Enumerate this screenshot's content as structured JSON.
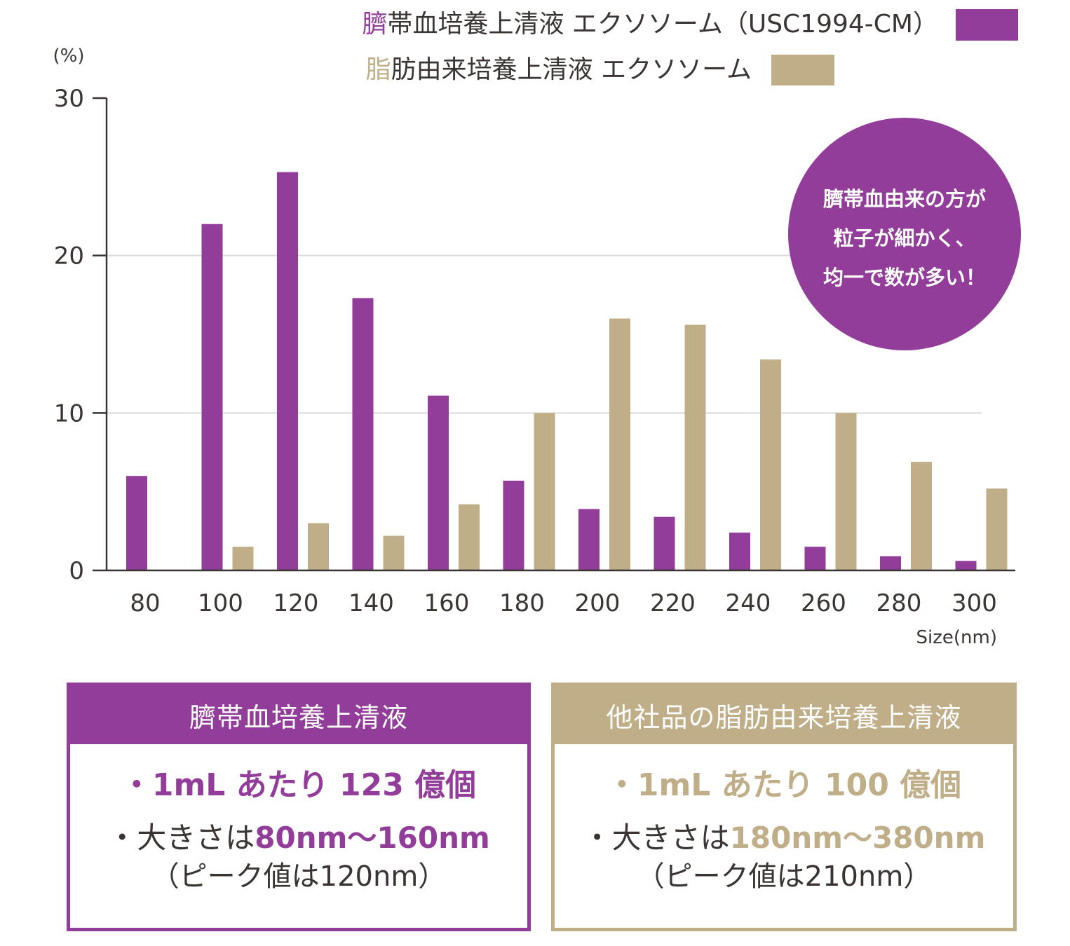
{
  "chart_data": {
    "type": "bar",
    "ylabel": "(%)",
    "xlabel": "Size(nm)",
    "ylim": [
      0,
      30
    ],
    "yticks": [
      "0",
      "10",
      "20",
      "30"
    ],
    "grid": true,
    "legend_position": "top-right",
    "categories": [
      "80",
      "100",
      "120",
      "140",
      "160",
      "180",
      "200",
      "220",
      "240",
      "260",
      "280",
      "300"
    ],
    "series": [
      {
        "name": "臍帯血培養上清液 エクソソーム（USC1994-CM）",
        "name_lead": "臍",
        "name_rest": "帯血培養上清液 エクソソーム（USC1994-CM）",
        "color": "#913d99",
        "values": [
          6.0,
          22.0,
          25.3,
          17.3,
          11.1,
          5.7,
          3.9,
          3.4,
          2.4,
          1.5,
          0.9,
          0.6
        ]
      },
      {
        "name": "脂肪由来培養上清液 エクソソーム",
        "name_lead": "脂",
        "name_rest": "肪由来培養上清液 エクソソーム",
        "color": "#bfae88",
        "values": [
          0,
          1.5,
          3.0,
          2.2,
          4.2,
          10.0,
          16.0,
          15.6,
          13.4,
          10.0,
          6.9,
          5.2
        ]
      }
    ],
    "callout": {
      "lines": [
        "臍帯血由来の方が",
        "粒子が細かく、",
        "均一で数が多い！"
      ],
      "color": "#913d99"
    }
  },
  "cards": {
    "purple": {
      "title": "臍帯血培養上清液",
      "line1": "・1mL あたり 123 億個",
      "line2_prefix": "・大きさは",
      "line2_value": "80nm～160nm",
      "line3": "（ピーク値は120nm）"
    },
    "tan": {
      "title": "他社品の脂肪由来培養上清液",
      "line1": "・1mL あたり 100 億個",
      "line2_prefix": "・大きさは",
      "line2_value": "180nm～380nm",
      "line3": "（ピーク値は210nm）"
    }
  }
}
